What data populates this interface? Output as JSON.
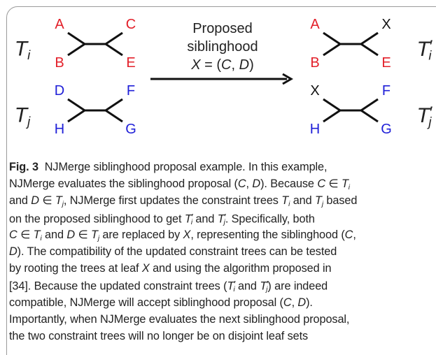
{
  "figure": {
    "trees": [
      {
        "name": [
          {
            "text": "T",
            "style": "italic"
          },
          {
            "text": "i",
            "style": "italic-sub"
          }
        ],
        "leaves": [
          {
            "text": "A",
            "color": "#e3202a"
          },
          {
            "text": "B",
            "color": "#e3202a"
          },
          {
            "text": "C",
            "color": "#e3202a"
          },
          {
            "text": "E",
            "color": "#e3202a"
          }
        ]
      },
      {
        "name": [
          {
            "text": "T",
            "style": "italic"
          },
          {
            "text": "′",
            "style": "sup"
          },
          {
            "text": "i",
            "style": "italic-sub"
          }
        ],
        "leaves": [
          {
            "text": "A",
            "color": "#e3202a"
          },
          {
            "text": "B",
            "color": "#e3202a"
          },
          {
            "text": "X",
            "color": "#111111"
          },
          {
            "text": "E",
            "color": "#e3202a"
          }
        ]
      },
      {
        "name": [
          {
            "text": "T",
            "style": "italic"
          },
          {
            "text": "j",
            "style": "italic-sub"
          }
        ],
        "leaves": [
          {
            "text": "D",
            "color": "#2020d8"
          },
          {
            "text": "H",
            "color": "#2020d8"
          },
          {
            "text": "F",
            "color": "#2020d8"
          },
          {
            "text": "G",
            "color": "#2020d8"
          }
        ]
      },
      {
        "name": [
          {
            "text": "T",
            "style": "italic"
          },
          {
            "text": "′",
            "style": "sup"
          },
          {
            "text": "j",
            "style": "italic-sub"
          }
        ],
        "leaves": [
          {
            "text": "X",
            "color": "#111111"
          },
          {
            "text": "H",
            "color": "#2020d8"
          },
          {
            "text": "F",
            "color": "#2020d8"
          },
          {
            "text": "G",
            "color": "#2020d8"
          }
        ]
      }
    ],
    "arrow_label": [
      [
        {
          "text": "Proposed"
        }
      ],
      [
        {
          "text": "siblinghood"
        }
      ],
      [
        {
          "text": "X",
          "style": "italic"
        },
        {
          "text": " = ("
        },
        {
          "text": "C",
          "style": "italic"
        },
        {
          "text": ", "
        },
        {
          "text": "D",
          "style": "italic"
        },
        {
          "text": ")"
        }
      ]
    ]
  },
  "caption": {
    "lines": [
      [
        {
          "text": "Fig. 3",
          "style": "bold"
        },
        {
          "text": "  NJMerge siblinghood proposal example. In this example,"
        }
      ],
      [
        {
          "text": "NJMerge evaluates the siblinghood proposal ("
        },
        {
          "text": "C",
          "style": "italic"
        },
        {
          "text": ", "
        },
        {
          "text": "D",
          "style": "italic"
        },
        {
          "text": "). Because "
        },
        {
          "text": "C",
          "style": "italic"
        },
        {
          "text": " ∈ "
        },
        {
          "text": "T",
          "style": "italic"
        },
        {
          "text": "i",
          "style": "italic-sub"
        }
      ],
      [
        {
          "text": "and "
        },
        {
          "text": "D",
          "style": "italic"
        },
        {
          "text": " ∈ "
        },
        {
          "text": "T",
          "style": "italic"
        },
        {
          "text": "j",
          "style": "italic-sub"
        },
        {
          "text": ", NJMerge first updates the constraint trees "
        },
        {
          "text": "T",
          "style": "italic"
        },
        {
          "text": "i",
          "style": "italic-sub"
        },
        {
          "text": " and "
        },
        {
          "text": "T",
          "style": "italic"
        },
        {
          "text": "j",
          "style": "italic-sub"
        },
        {
          "text": " based"
        }
      ],
      [
        {
          "text": "on the proposed siblinghood to get "
        },
        {
          "text": "T",
          "style": "italic"
        },
        {
          "text": "′",
          "style": "sup"
        },
        {
          "text": "i",
          "style": "italic-sub"
        },
        {
          "text": " and "
        },
        {
          "text": "T",
          "style": "italic"
        },
        {
          "text": "′",
          "style": "sup"
        },
        {
          "text": "j",
          "style": "italic-sub"
        },
        {
          "text": ". Specifically, both"
        }
      ],
      [
        {
          "text": "C",
          "style": "italic"
        },
        {
          "text": " ∈ "
        },
        {
          "text": "T",
          "style": "italic"
        },
        {
          "text": "i",
          "style": "italic-sub"
        },
        {
          "text": " and "
        },
        {
          "text": "D",
          "style": "italic"
        },
        {
          "text": " ∈ "
        },
        {
          "text": "T",
          "style": "italic"
        },
        {
          "text": "j",
          "style": "italic-sub"
        },
        {
          "text": " are replaced by "
        },
        {
          "text": "X",
          "style": "italic"
        },
        {
          "text": ", representing the siblinghood ("
        },
        {
          "text": "C",
          "style": "italic"
        },
        {
          "text": ","
        }
      ],
      [
        {
          "text": "D",
          "style": "italic"
        },
        {
          "text": "). The compatibility of the updated constraint trees can be tested"
        }
      ],
      [
        {
          "text": "by rooting the trees at leaf "
        },
        {
          "text": "X",
          "style": "italic"
        },
        {
          "text": " and using the algorithm proposed in"
        }
      ],
      [
        {
          "text": "[34]. Because the updated constraint trees ("
        },
        {
          "text": "T",
          "style": "italic"
        },
        {
          "text": "′",
          "style": "sup"
        },
        {
          "text": "i",
          "style": "italic-sub"
        },
        {
          "text": " and "
        },
        {
          "text": "T",
          "style": "italic"
        },
        {
          "text": "′",
          "style": "sup"
        },
        {
          "text": "j",
          "style": "italic-sub"
        },
        {
          "text": ") are indeed"
        }
      ],
      [
        {
          "text": "compatible, NJMerge will accept siblinghood proposal ("
        },
        {
          "text": "C",
          "style": "italic"
        },
        {
          "text": ", "
        },
        {
          "text": "D",
          "style": "italic"
        },
        {
          "text": ")."
        }
      ],
      [
        {
          "text": "Importantly, when NJMerge evaluates the next siblinghood proposal,"
        }
      ],
      [
        {
          "text": "the two constraint trees will no longer be on disjoint leaf sets"
        }
      ]
    ]
  }
}
